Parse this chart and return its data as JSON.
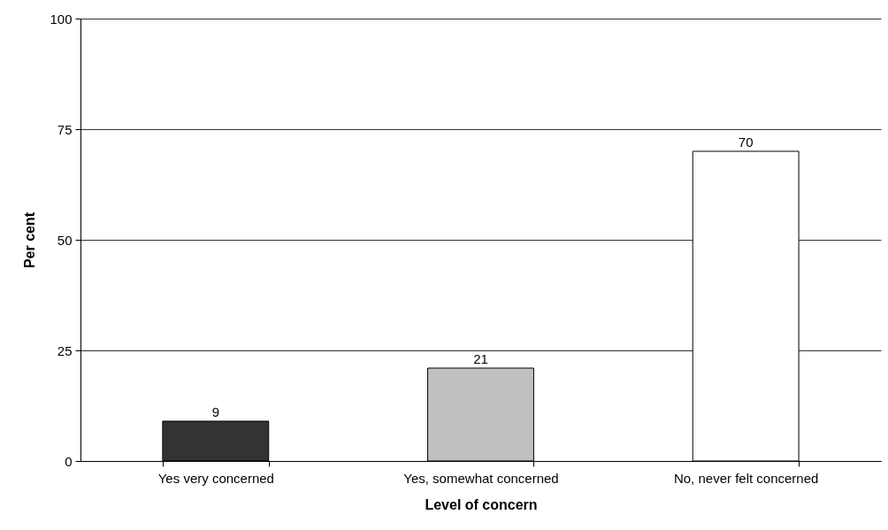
{
  "chart_data": {
    "type": "bar",
    "xlabel": "Level of concern",
    "ylabel": "Per cent",
    "categories": [
      "Yes very concerned",
      "Yes, somewhat concerned",
      "No, never felt concerned"
    ],
    "values": [
      9,
      21,
      70
    ],
    "colors": [
      "#333333",
      "#c0c0c0",
      "#ffffff"
    ],
    "ylim": [
      0,
      100
    ],
    "yticks": [
      0,
      25,
      50,
      75,
      100
    ],
    "grid": "y",
    "data_labels": true
  }
}
